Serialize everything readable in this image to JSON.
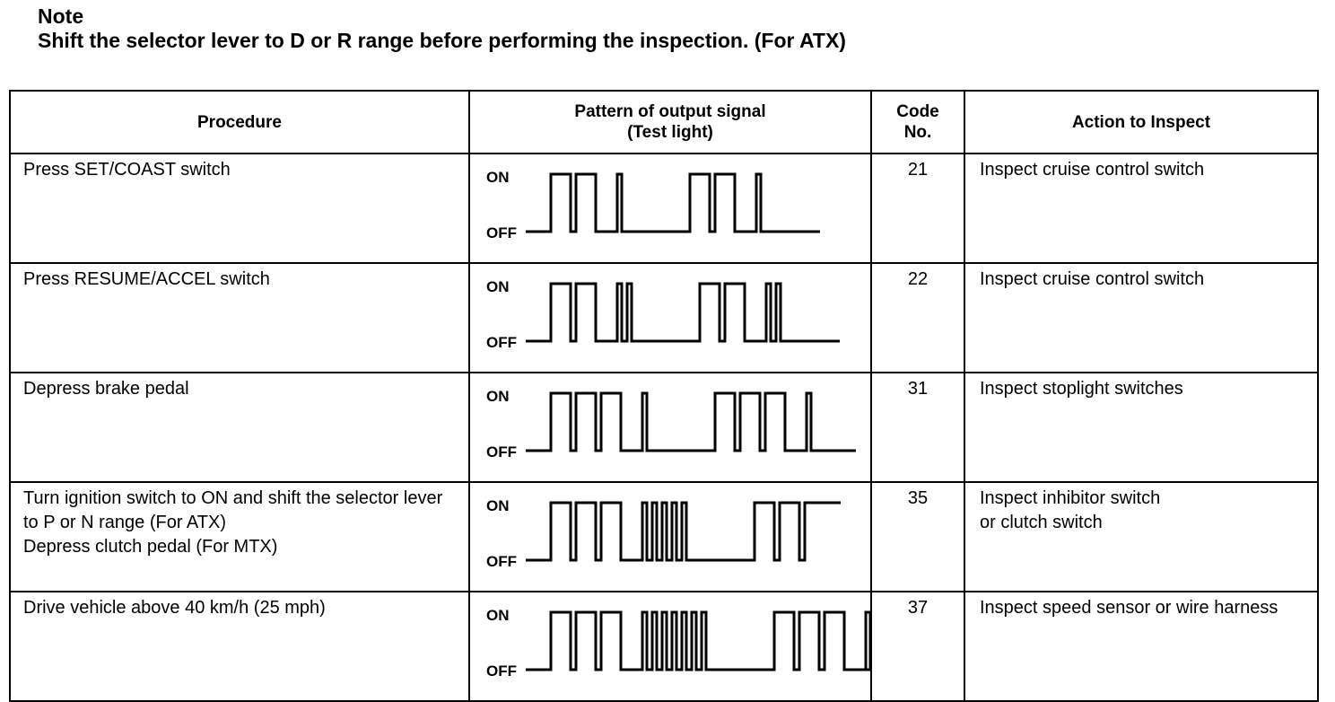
{
  "note": {
    "title": "Note",
    "text": "Shift the selector lever to D or R range before performing the inspection. (For ATX)"
  },
  "table": {
    "headers": [
      "Procedure",
      "Pattern of output signal\n(Test light)",
      "Code\nNo.",
      "Action to Inspect"
    ],
    "signal_labels": {
      "on": "ON",
      "off": "OFF"
    },
    "rows": [
      {
        "procedure": "Press SET/COAST switch",
        "code": "21",
        "action": "Inspect cruise control switch",
        "long": 2,
        "short": 1,
        "ends_on": false
      },
      {
        "procedure": "Press RESUME/ACCEL switch",
        "code": "22",
        "action": "Inspect cruise control switch",
        "long": 2,
        "short": 2,
        "ends_on": false
      },
      {
        "procedure": "Depress brake pedal",
        "code": "31",
        "action": "Inspect stoplight switches",
        "long": 3,
        "short": 1,
        "ends_on": false
      },
      {
        "procedure": "Turn ignition switch to ON and shift the selector lever to P or N range (For ATX)\nDepress clutch pedal (For MTX)",
        "code": "35",
        "action": "Inspect inhibitor switch\nor clutch switch",
        "long": 3,
        "short": 5,
        "ends_on": true
      },
      {
        "procedure": "Drive vehicle above 40 km/h (25 mph)",
        "code": "37",
        "action": "Inspect speed sensor or wire harness",
        "long": 3,
        "short": 7,
        "ends_on": false
      }
    ]
  }
}
